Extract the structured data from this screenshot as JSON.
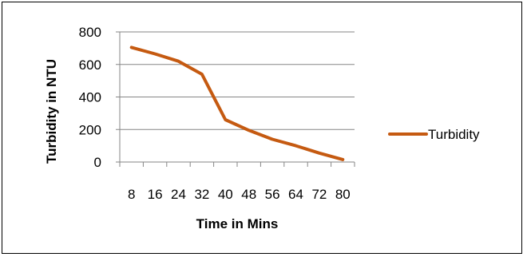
{
  "chart_data": {
    "type": "line",
    "title": "",
    "xlabel": "Time in Mins",
    "ylabel": "Turbidity in NTU",
    "categories": [
      "8",
      "16",
      "24",
      "32",
      "40",
      "48",
      "56",
      "64",
      "72",
      "80"
    ],
    "series": [
      {
        "name": "Turbidity",
        "color": "#c55a11",
        "values": [
          705,
          665,
          620,
          540,
          260,
          195,
          140,
          100,
          55,
          15
        ]
      }
    ],
    "ylim": [
      0,
      800
    ],
    "yticks": [
      0,
      200,
      400,
      600,
      800
    ],
    "grid": true,
    "legend": "right"
  }
}
